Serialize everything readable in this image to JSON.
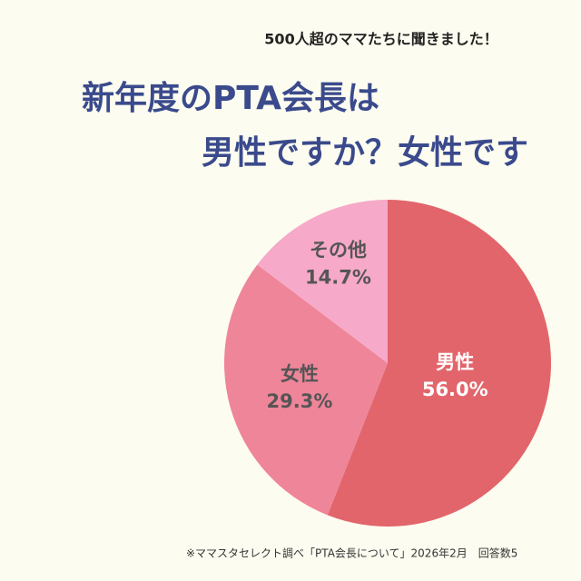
{
  "chart_data": {
    "type": "pie",
    "subtitle": "500人超のママたちに聞きました！",
    "title": [
      "新年度のPTA会長は",
      "男性ですか？女性です"
    ],
    "categories": [
      "男性",
      "女性",
      "その他"
    ],
    "values": [
      56.0,
      29.3,
      14.7
    ],
    "value_labels": [
      "56.0%",
      "29.3%",
      "14.7%"
    ],
    "colors": [
      "#e2656b",
      "#ef8599",
      "#f6a9c8"
    ],
    "note": "※ママスタセレクト調べ「PTA会長について」2026年2月　回答数5"
  }
}
